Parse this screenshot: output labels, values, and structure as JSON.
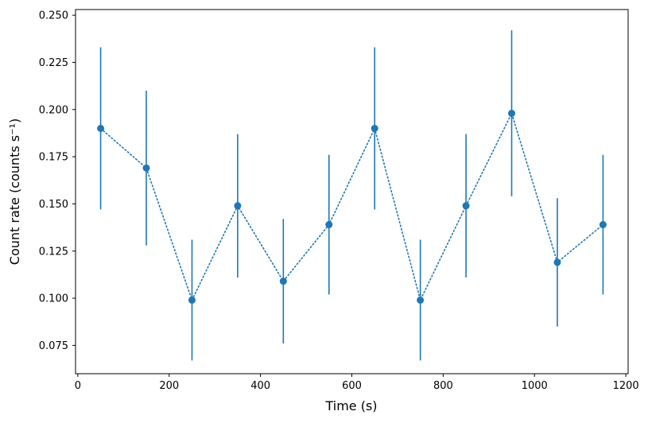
{
  "chart_data": {
    "type": "line",
    "title": "",
    "xlabel": "Time (s)",
    "ylabel": "Count rate (counts s⁻¹)",
    "x": [
      50,
      150,
      250,
      350,
      450,
      550,
      650,
      750,
      850,
      950,
      1050,
      1150
    ],
    "y": [
      0.19,
      0.169,
      0.099,
      0.149,
      0.109,
      0.139,
      0.19,
      0.099,
      0.149,
      0.198,
      0.119,
      0.139
    ],
    "yerr": [
      0.043,
      0.041,
      0.032,
      0.038,
      0.033,
      0.037,
      0.043,
      0.032,
      0.038,
      0.044,
      0.034,
      0.037
    ],
    "xlim": [
      -5,
      1205
    ],
    "ylim": [
      0.06,
      0.253
    ],
    "xticks": [
      0,
      200,
      400,
      600,
      800,
      1000,
      1200
    ],
    "yticks": [
      0.075,
      0.1,
      0.125,
      0.15,
      0.175,
      0.2,
      0.225,
      0.25
    ],
    "line_style": "dotted",
    "marker": "circle",
    "color": "#1f77b4",
    "grid": false,
    "legend": "none"
  }
}
